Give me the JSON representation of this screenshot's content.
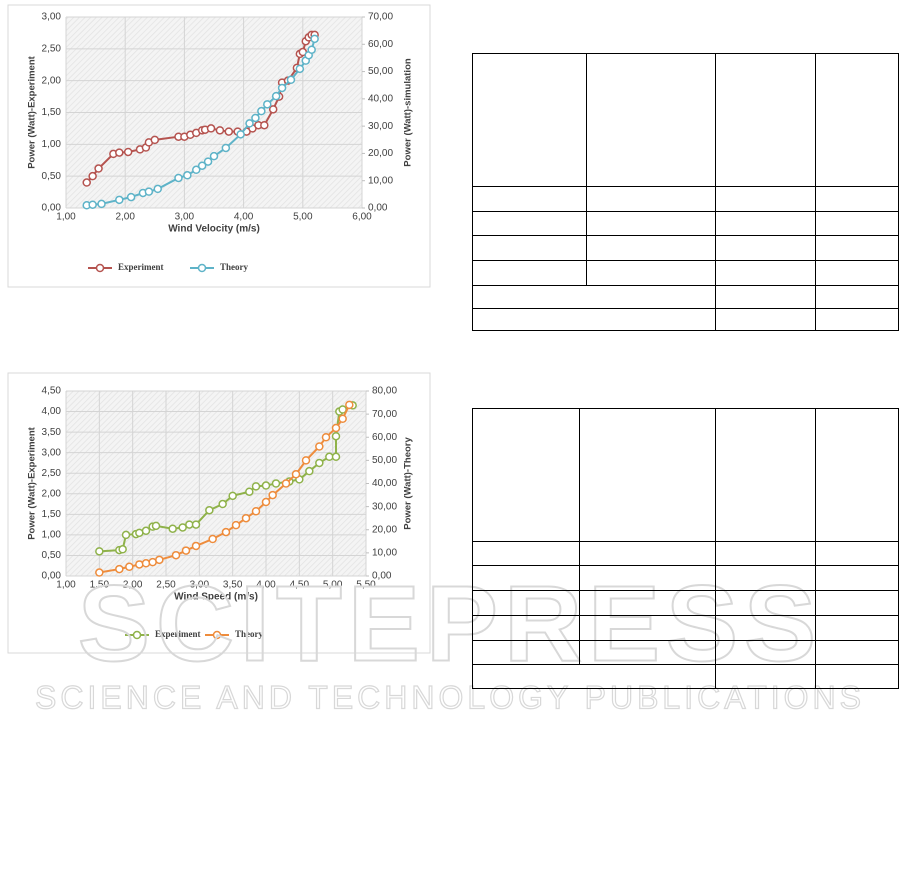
{
  "chart_data": [
    {
      "type": "line",
      "x_label": "Wind Velocity (m/s)",
      "y_label": "Power (Watt)-Experiment",
      "y2_label": "Power (Watt)-simulation",
      "xlim": [
        1,
        6
      ],
      "xticks": [
        {
          "value": 1,
          "label": "1,00"
        },
        {
          "value": 2,
          "label": "2,00"
        },
        {
          "value": 3,
          "label": "3,00"
        },
        {
          "value": 4,
          "label": "4,00"
        },
        {
          "value": 5,
          "label": "5,00"
        },
        {
          "value": 6,
          "label": "6,00"
        }
      ],
      "ylim": [
        0,
        3
      ],
      "yticks": [
        {
          "value": 0,
          "label": "0,00"
        },
        {
          "value": 0.5,
          "label": "0,50"
        },
        {
          "value": 1,
          "label": "1,00"
        },
        {
          "value": 1.5,
          "label": "1,50"
        },
        {
          "value": 2,
          "label": "2,00"
        },
        {
          "value": 2.5,
          "label": "2,50"
        },
        {
          "value": 3,
          "label": "3,00"
        }
      ],
      "y2lim": [
        0,
        70
      ],
      "y2ticks": [
        {
          "value": 0,
          "label": "0,00"
        },
        {
          "value": 10,
          "label": "10,00"
        },
        {
          "value": 20,
          "label": "20,00"
        },
        {
          "value": 30,
          "label": "30,00"
        },
        {
          "value": 40,
          "label": "40,00"
        },
        {
          "value": 50,
          "label": "50,00"
        },
        {
          "value": 60,
          "label": "60,00"
        },
        {
          "value": 70,
          "label": "70,00"
        }
      ],
      "grid": true,
      "legend": "bottom",
      "series": [
        {
          "name": "Experiment",
          "color": "#b5534f",
          "x": [
            1.35,
            1.45,
            1.55,
            1.8,
            1.9,
            2.05,
            2.25,
            2.35,
            2.4,
            2.5,
            2.9,
            3.0,
            3.1,
            3.2,
            3.3,
            3.35,
            3.45,
            3.6,
            3.75,
            3.9,
            4.05,
            4.15,
            4.25,
            4.35,
            4.5,
            4.6,
            4.65,
            4.75,
            4.9,
            4.95,
            5.0,
            5.05,
            5.1,
            5.15,
            5.2
          ],
          "values": [
            0.4,
            0.5,
            0.62,
            0.85,
            0.87,
            0.88,
            0.92,
            0.95,
            1.03,
            1.07,
            1.12,
            1.12,
            1.15,
            1.18,
            1.22,
            1.23,
            1.25,
            1.22,
            1.2,
            1.2,
            1.2,
            1.25,
            1.3,
            1.3,
            1.55,
            1.75,
            1.97,
            2.0,
            2.2,
            2.42,
            2.45,
            2.62,
            2.68,
            2.72,
            2.72
          ]
        },
        {
          "name": "Theory",
          "color": "#5eb3c8",
          "axis": "y2",
          "x": [
            1.35,
            1.45,
            1.6,
            1.9,
            2.1,
            2.3,
            2.4,
            2.55,
            2.9,
            3.05,
            3.2,
            3.3,
            3.4,
            3.5,
            3.7,
            3.95,
            4.1,
            4.2,
            4.3,
            4.4,
            4.55,
            4.65,
            4.8,
            4.95,
            5.05,
            5.1,
            5.15,
            5.2
          ],
          "values": [
            1,
            1.2,
            1.5,
            3,
            4,
            5.5,
            6,
            7,
            11,
            12,
            14,
            15.5,
            17,
            19,
            22,
            27,
            31,
            33,
            35.5,
            38,
            41,
            44,
            47,
            51,
            54,
            56,
            58,
            62
          ]
        }
      ]
    },
    {
      "type": "line",
      "x_label": "Wind Speed (m/s)",
      "y_label": "Power (Watt)-Experiment",
      "y2_label": "Power (Watt)-Theory",
      "xlim": [
        1,
        5.5
      ],
      "xticks": [
        {
          "value": 1,
          "label": "1,00"
        },
        {
          "value": 1.5,
          "label": "1,50"
        },
        {
          "value": 2,
          "label": "2,00"
        },
        {
          "value": 2.5,
          "label": "2,50"
        },
        {
          "value": 3,
          "label": "3,00"
        },
        {
          "value": 3.5,
          "label": "3,50"
        },
        {
          "value": 4,
          "label": "4,00"
        },
        {
          "value": 4.5,
          "label": "4,50"
        },
        {
          "value": 5,
          "label": "5,00"
        },
        {
          "value": 5.5,
          "label": "5,50"
        }
      ],
      "ylim": [
        0,
        4.5
      ],
      "yticks": [
        {
          "value": 0,
          "label": "0,00"
        },
        {
          "value": 0.5,
          "label": "0,50"
        },
        {
          "value": 1,
          "label": "1,00"
        },
        {
          "value": 1.5,
          "label": "1,50"
        },
        {
          "value": 2,
          "label": "2,00"
        },
        {
          "value": 2.5,
          "label": "2,50"
        },
        {
          "value": 3,
          "label": "3,00"
        },
        {
          "value": 3.5,
          "label": "3,50"
        },
        {
          "value": 4,
          "label": "4,00"
        },
        {
          "value": 4.5,
          "label": "4,50"
        }
      ],
      "y2lim": [
        0,
        80
      ],
      "y2ticks": [
        {
          "value": 0,
          "label": "0,00"
        },
        {
          "value": 10,
          "label": "10,00"
        },
        {
          "value": 20,
          "label": "20,00"
        },
        {
          "value": 30,
          "label": "30,00"
        },
        {
          "value": 40,
          "label": "40,00"
        },
        {
          "value": 50,
          "label": "50,00"
        },
        {
          "value": 60,
          "label": "60,00"
        },
        {
          "value": 70,
          "label": "70,00"
        },
        {
          "value": 80,
          "label": "80,00"
        }
      ],
      "grid": true,
      "legend": "bottom",
      "series": [
        {
          "name": "Experiment",
          "color": "#8fb24a",
          "x": [
            1.5,
            1.8,
            1.85,
            1.9,
            2.05,
            2.1,
            2.2,
            2.3,
            2.35,
            2.6,
            2.75,
            2.85,
            2.95,
            3.15,
            3.35,
            3.5,
            3.75,
            3.85,
            4.0,
            4.15,
            4.35,
            4.5,
            4.65,
            4.8,
            4.95,
            5.05,
            5.05,
            5.1,
            5.15,
            5.3
          ],
          "values": [
            0.6,
            0.63,
            0.65,
            1.0,
            1.02,
            1.05,
            1.1,
            1.2,
            1.22,
            1.15,
            1.18,
            1.25,
            1.25,
            1.6,
            1.75,
            1.95,
            2.05,
            2.18,
            2.2,
            2.25,
            2.3,
            2.35,
            2.55,
            2.75,
            2.9,
            2.9,
            3.4,
            4.0,
            4.05,
            4.15
          ]
        },
        {
          "name": "Theory",
          "color": "#ee8c3c",
          "axis": "y2",
          "x": [
            1.5,
            1.8,
            1.95,
            2.1,
            2.2,
            2.3,
            2.4,
            2.65,
            2.8,
            2.95,
            3.2,
            3.4,
            3.55,
            3.7,
            3.85,
            4.0,
            4.1,
            4.3,
            4.45,
            4.6,
            4.8,
            4.9,
            5.05,
            5.15,
            5.25
          ],
          "values": [
            1.5,
            3,
            4,
            5,
            5.5,
            6,
            7,
            9,
            11,
            13,
            16,
            19,
            22,
            25,
            28,
            32,
            35,
            40,
            44,
            50,
            56,
            60,
            64,
            68,
            74
          ]
        }
      ]
    }
  ],
  "watermark": {
    "logo": "SCITEPRESS",
    "tagline": "SCIENCE AND TECHNOLOGY PUBLICATIONS"
  }
}
